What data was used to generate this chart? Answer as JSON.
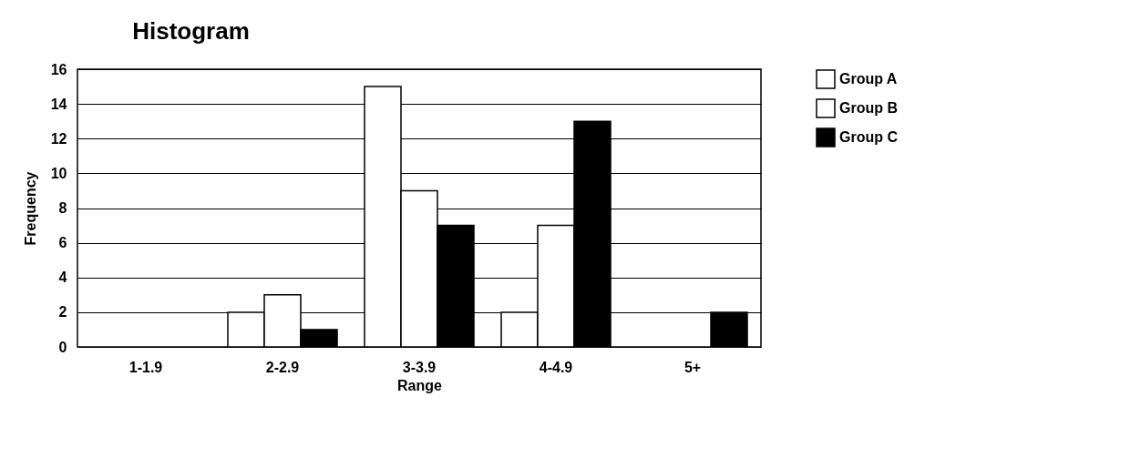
{
  "chart_data": {
    "type": "bar",
    "title": "Histogram",
    "xlabel": "Range",
    "ylabel": "Frequency",
    "categories": [
      "1-1.9",
      "2-2.9",
      "3-3.9",
      "4-4.9",
      "5+"
    ],
    "series": [
      {
        "name": "Group A",
        "color": "#ffffff",
        "values": [
          0,
          2,
          15,
          2,
          0
        ]
      },
      {
        "name": "Group B",
        "color": "#ffffff",
        "values": [
          0,
          3,
          9,
          7,
          0
        ]
      },
      {
        "name": "Group C",
        "color": "#000000",
        "values": [
          0,
          1,
          7,
          13,
          2
        ]
      }
    ],
    "ylim": [
      0,
      16
    ],
    "yticks": [
      0,
      2,
      4,
      6,
      8,
      10,
      12,
      14,
      16
    ],
    "grid": "y",
    "legend": "right"
  }
}
